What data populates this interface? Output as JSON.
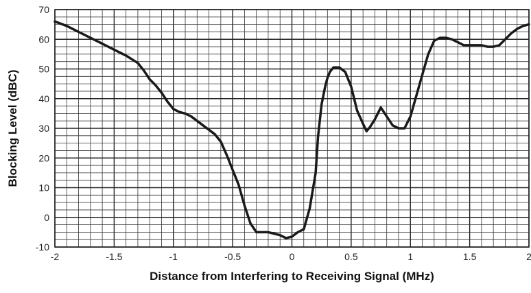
{
  "chart_data": {
    "type": "line",
    "title": "",
    "xlabel": "Distance from Interfering to Receiving Signal (MHz)",
    "ylabel": "Blocking Level (dBC)",
    "xlim": [
      -2,
      2
    ],
    "ylim": [
      -10,
      70
    ],
    "x_ticks": [
      -2,
      -1.5,
      -1,
      -0.5,
      0,
      0.5,
      1,
      1.5,
      2
    ],
    "x_tick_labels": [
      "-2",
      "-1.5",
      "-1",
      "-0.5",
      "0",
      "0.5",
      "1",
      "1.5",
      "2"
    ],
    "y_ticks": [
      -10,
      0,
      10,
      20,
      30,
      40,
      50,
      60,
      70
    ],
    "y_tick_labels": [
      "-10",
      "0",
      "10",
      "20",
      "30",
      "40",
      "50",
      "60",
      "70"
    ],
    "x_minor_step": 0.1,
    "y_minor_step": 2.5,
    "grid": true,
    "legend": "none",
    "line_color": "#1a1a1a",
    "series": [
      {
        "x": [
          -2.0,
          -1.9,
          -1.8,
          -1.7,
          -1.6,
          -1.5,
          -1.4,
          -1.3,
          -1.25,
          -1.2,
          -1.15,
          -1.1,
          -1.05,
          -1.0,
          -0.95,
          -0.9,
          -0.85,
          -0.8,
          -0.75,
          -0.7,
          -0.65,
          -0.6,
          -0.55,
          -0.5,
          -0.45,
          -0.4,
          -0.35,
          -0.3,
          -0.25,
          -0.2,
          -0.15,
          -0.1,
          -0.05,
          0.0,
          0.05,
          0.1,
          0.15,
          0.2,
          0.22,
          0.25,
          0.28,
          0.3,
          0.32,
          0.35,
          0.4,
          0.45,
          0.5,
          0.55,
          0.6,
          0.63,
          0.66,
          0.7,
          0.75,
          0.8,
          0.85,
          0.9,
          0.95,
          1.0,
          1.05,
          1.1,
          1.15,
          1.2,
          1.25,
          1.3,
          1.35,
          1.4,
          1.45,
          1.5,
          1.55,
          1.6,
          1.65,
          1.7,
          1.75,
          1.8,
          1.85,
          1.9,
          1.95,
          2.0
        ],
        "y": [
          66,
          64.5,
          62.5,
          60.5,
          58.5,
          56.5,
          54.5,
          52,
          49.5,
          46.5,
          44.5,
          42,
          39,
          36.5,
          35.5,
          35,
          34,
          32.5,
          31,
          29.5,
          28,
          25.5,
          21,
          16,
          11,
          4,
          -2,
          -5,
          -5,
          -5,
          -5.5,
          -6,
          -7,
          -6.5,
          -5,
          -4,
          3,
          15,
          27,
          38,
          44,
          47,
          49,
          50.5,
          50.5,
          49,
          44,
          36,
          31.5,
          29,
          30.5,
          33,
          37,
          34,
          31,
          30,
          30,
          34,
          41,
          48,
          55,
          59.5,
          60.5,
          60.5,
          60,
          59,
          58,
          58,
          58,
          58,
          57.5,
          57.5,
          58,
          60,
          62,
          63.5,
          64.5,
          65
        ]
      }
    ]
  }
}
